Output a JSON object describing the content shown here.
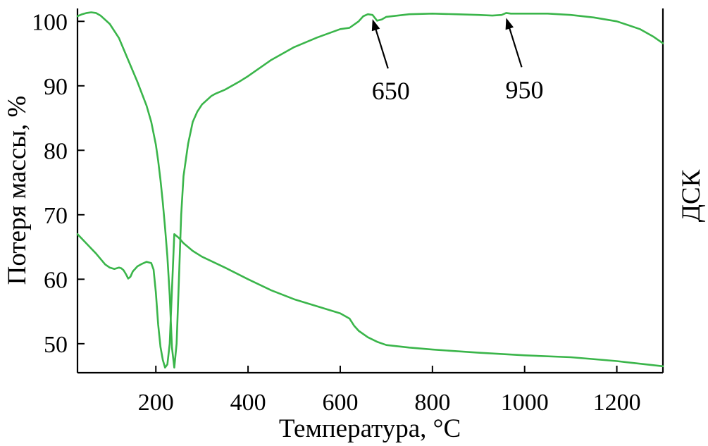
{
  "chart_data": {
    "type": "line",
    "xlabel": "Температура, °C",
    "ylabel": "Потеря массы, %",
    "ylabel_right": "ДСК",
    "xlim": [
      30,
      1300
    ],
    "ylim": [
      45.5,
      102
    ],
    "x_ticks": [
      200,
      400,
      600,
      800,
      1000,
      1200
    ],
    "y_ticks": [
      50,
      60,
      70,
      80,
      90,
      100
    ],
    "grid": false,
    "colors": {
      "series": "#3ab54a",
      "axes": "#000000"
    },
    "annotations": [
      {
        "text": "650",
        "x": 670,
        "y": 101.0
      },
      {
        "text": "950",
        "x": 960,
        "y": 101.2
      }
    ],
    "series": [
      {
        "x": [
          30,
          40,
          50,
          60,
          70,
          80,
          100,
          120,
          140,
          160,
          180,
          190,
          200,
          205,
          210,
          215,
          220,
          225,
          230,
          235,
          240,
          245,
          250,
          255,
          260,
          270,
          280,
          290,
          300,
          320,
          330,
          350,
          380,
          400,
          450,
          500,
          550,
          600,
          620,
          640,
          650,
          660,
          670,
          680,
          690,
          700,
          750,
          800,
          850,
          900,
          930,
          950,
          960,
          970,
          1000,
          1050,
          1100,
          1150,
          1200,
          1250,
          1280,
          1300
        ],
        "y": [
          100.8,
          101.1,
          101.3,
          101.4,
          101.3,
          100.9,
          99.6,
          97.4,
          94.0,
          90.6,
          86.9,
          84.4,
          80.9,
          78.4,
          75.4,
          71.9,
          68.0,
          63.5,
          57.5,
          49.4,
          46.3,
          50.0,
          60.0,
          70.0,
          76.0,
          81.0,
          84.4,
          86.0,
          87.1,
          88.4,
          88.8,
          89.4,
          90.6,
          91.5,
          94.0,
          96.0,
          97.5,
          98.8,
          99.0,
          100.0,
          100.8,
          101.1,
          101.0,
          100.1,
          100.3,
          100.7,
          101.1,
          101.2,
          101.1,
          101.0,
          100.9,
          101.0,
          101.3,
          101.2,
          101.2,
          101.2,
          101.0,
          100.6,
          100.0,
          98.8,
          97.6,
          96.6
        ]
      },
      {
        "x": [
          30,
          50,
          70,
          90,
          100,
          110,
          120,
          125,
          130,
          135,
          140,
          145,
          150,
          160,
          170,
          180,
          190,
          195,
          200,
          205,
          210,
          215,
          220,
          225,
          230,
          240,
          250,
          260,
          280,
          300,
          350,
          400,
          450,
          500,
          550,
          600,
          620,
          630,
          640,
          660,
          680,
          700,
          750,
          800,
          900,
          1000,
          1100,
          1200,
          1250,
          1300
        ],
        "y": [
          67.0,
          65.5,
          64.0,
          62.3,
          61.8,
          61.6,
          61.8,
          61.7,
          61.4,
          60.8,
          60.1,
          60.4,
          61.2,
          62.0,
          62.4,
          62.7,
          62.5,
          61.5,
          58.0,
          53.0,
          49.5,
          47.5,
          46.3,
          46.8,
          50.0,
          67.0,
          66.4,
          65.6,
          64.4,
          63.5,
          61.8,
          60.0,
          58.3,
          56.9,
          55.8,
          54.7,
          53.9,
          52.8,
          52.0,
          51.0,
          50.3,
          49.8,
          49.4,
          49.1,
          48.6,
          48.2,
          47.9,
          47.3,
          46.9,
          46.5
        ]
      }
    ]
  }
}
